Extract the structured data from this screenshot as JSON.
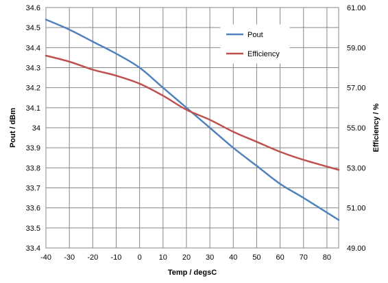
{
  "chart_data": {
    "type": "line",
    "title": "",
    "xlabel": "Temp / degsC",
    "ylabel_left": "Pout / dBm",
    "ylabel_right": "Efficiency / %",
    "x_ticks": [
      "-40",
      "-30",
      "-20",
      "-10",
      "0",
      "10",
      "20",
      "30",
      "40",
      "50",
      "60",
      "70",
      "80"
    ],
    "xlim": [
      -40,
      85
    ],
    "y_left_ticks": [
      "33.4",
      "33.5",
      "33.6",
      "33.7",
      "33.8",
      "33.9",
      "34",
      "34.1",
      "34.2",
      "34.3",
      "34.4",
      "34.5",
      "34.6"
    ],
    "ylim_left": [
      33.4,
      34.6
    ],
    "y_right_ticks": [
      "49.00",
      "51.00",
      "53.00",
      "55.00",
      "57.00",
      "59.00",
      "61.00"
    ],
    "ylim_right": [
      49,
      61
    ],
    "grid": true,
    "legend_position": "top-right",
    "series": [
      {
        "name": "Pout",
        "axis": "left",
        "color": "#4F81BD",
        "x": [
          -40,
          -30,
          -20,
          -10,
          0,
          10,
          20,
          30,
          40,
          50,
          60,
          70,
          85
        ],
        "y": [
          34.54,
          34.49,
          34.43,
          34.37,
          34.3,
          34.2,
          34.1,
          34.0,
          33.9,
          33.81,
          33.72,
          33.65,
          33.54
        ]
      },
      {
        "name": "Efficiency",
        "axis": "right",
        "color": "#C0504D",
        "x": [
          -40,
          -30,
          -20,
          -10,
          0,
          10,
          20,
          30,
          40,
          50,
          60,
          70,
          85
        ],
        "y": [
          58.6,
          58.3,
          57.9,
          57.6,
          57.2,
          56.6,
          55.9,
          55.4,
          54.8,
          54.3,
          53.8,
          53.4,
          52.9
        ]
      }
    ]
  }
}
